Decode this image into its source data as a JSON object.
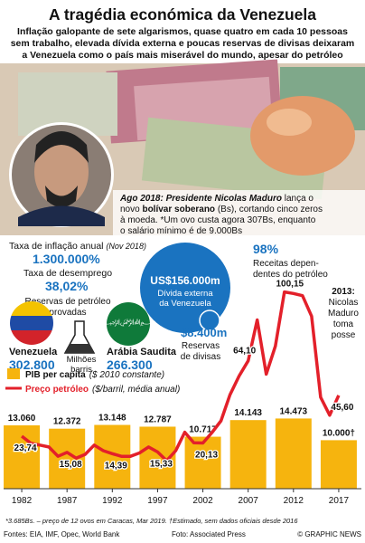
{
  "title": "A tragédia económica da Venezuela",
  "subtitle": [
    "Inflação galopante de sete algarismos, quase quatro em cada 10 pessoas",
    "sem trabalho, elevada dívida externa e poucas reservas de divisas deixaram",
    "a Venezuela como o país mais miserável do mundo, apesar do petróleo"
  ],
  "caption": [
    [
      "Ago 2018: Presidente Nicolas Maduro",
      " lança o"
    ],
    [
      "novo ",
      "bolívar soberano",
      " (Bs), cortando cinco zeros"
    ],
    [
      "à moeda. *Um ovo custa agora 307Bs, enquanto"
    ],
    [
      "o salário mínimo é de 9.000Bs"
    ]
  ],
  "stats": {
    "inflation_label": "Taxa de inflação anual",
    "inflation_note": "(Nov 2018)",
    "inflation_value": "1.300.000%",
    "unemployment_label": "Taxa de desemprego",
    "unemployment_value": "38,02%",
    "reserves_label": [
      "Reservas de petróleo",
      "provadas"
    ],
    "oil_revenue_value": "98%",
    "oil_revenue_label": [
      "Receitas depen-",
      "dentes do petróleo"
    ],
    "debt_value": "US$156.000m",
    "debt_label": [
      "Dívida externa",
      "da Venezuela"
    ],
    "fx_value": "$8.400m",
    "fx_label": [
      "Reservas",
      "de divisas"
    ],
    "venezuela": "Venezuela",
    "venezuela_value": "302.800",
    "unit": [
      "Milhões",
      "barris"
    ],
    "saudi": "Arábia Saudita",
    "saudi_value": "266.300"
  },
  "chart_data": {
    "type": "bar",
    "xlim": [
      1979.6,
      2019.9
    ],
    "xticks": [
      1982,
      1987,
      1992,
      1997,
      2002,
      2007,
      2012,
      2017
    ],
    "ylim": [
      0,
      25000
    ],
    "y2lim": [
      0,
      110
    ],
    "annotations": [
      "2013:",
      "Nicolas",
      "Maduro",
      "toma",
      "posse"
    ],
    "series": [
      {
        "type": "bar",
        "name": "PIB per capita",
        "unit": "($ 2010 constante)",
        "color": "#f6b40e",
        "x": [
          1982,
          1987,
          1992,
          1997,
          2002,
          2007,
          2012,
          2017
        ],
        "values": [
          13060,
          12372,
          13148,
          12787,
          10717,
          14143,
          14473,
          10000
        ],
        "value_labels": [
          "13.060",
          "12.372",
          "13.148",
          "12.787",
          "10.717",
          "14.143",
          "14.473",
          "10.000†"
        ]
      },
      {
        "type": "line",
        "axis": "y2",
        "name": "Preço petróleo",
        "unit": "($/barril, média anual)",
        "color": "#e3202a",
        "x": [
          1982,
          1983,
          1984,
          1985,
          1986,
          1987,
          1988,
          1989,
          1990,
          1991,
          1992,
          1993,
          1994,
          1995,
          1996,
          1997,
          1998,
          1999,
          2000,
          2001,
          2002,
          2003,
          2004,
          2005,
          2006,
          2007,
          2008,
          2009,
          2010,
          2011,
          2012,
          2013,
          2014,
          2015,
          2016,
          2017
        ],
        "values": [
          23.74,
          20,
          19,
          18,
          13,
          15.08,
          12,
          14,
          19,
          16,
          14.39,
          13,
          13,
          14.8,
          18,
          15.33,
          10.6,
          16,
          25.9,
          20.2,
          20.13,
          25.7,
          32,
          46,
          56,
          64.1,
          86,
          57,
          72,
          101,
          100.15,
          99,
          88,
          44.6,
          35,
          45.6
        ],
        "value_labels": [
          "23,74",
          null,
          null,
          null,
          null,
          "15,08",
          null,
          null,
          null,
          null,
          "14,39",
          null,
          null,
          null,
          null,
          "15,33",
          null,
          null,
          null,
          null,
          "20,13",
          null,
          null,
          null,
          null,
          "64,10",
          null,
          null,
          null,
          null,
          "100,15",
          null,
          null,
          null,
          null,
          "45,60"
        ]
      }
    ]
  },
  "footnote": "*3.685Bs. – preço de 12 ovos em Caracas, Mar 2019. †Estimado, sem dados oficiais desde 2016",
  "sources": "Fontes: EIA, IMF, Opec, World Bank",
  "picture": "Foto: Associated Press",
  "credit": "© GRAPHIC NEWS"
}
